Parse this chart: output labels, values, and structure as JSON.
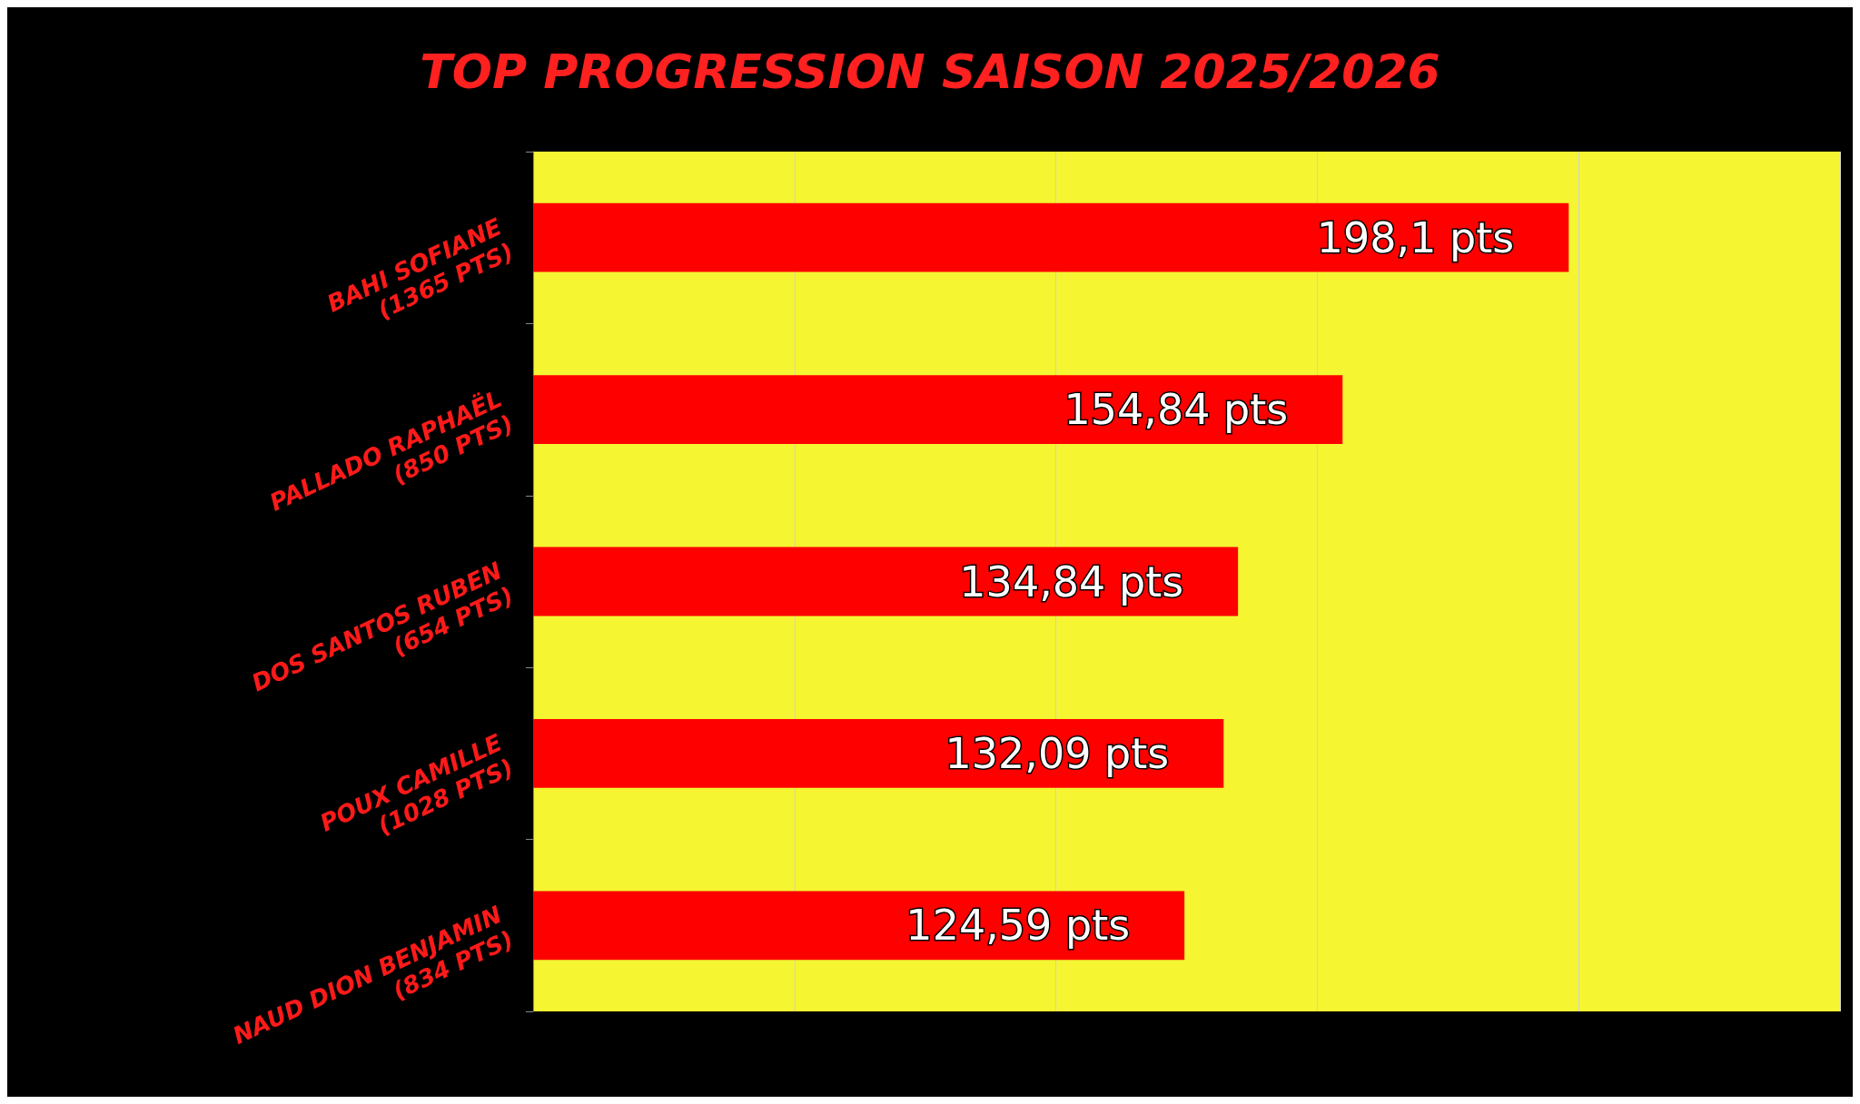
{
  "chart_data": {
    "type": "bar",
    "orientation": "horizontal",
    "title": "TOP PROGRESSION SAISON 2025/2026",
    "categories": [
      "BAHI SOFIANE\n(1365 PTS)",
      "PALLADO RAPHAËL\n(850 PTS)",
      "DOS SANTOS RUBEN\n(654 PTS)",
      "POUX CAMILLE\n(1028 PTS)",
      "NAUD DION BENJAMIN\n(834 PTS)"
    ],
    "values": [
      198.1,
      154.84,
      134.84,
      132.09,
      124.59
    ],
    "value_labels": [
      "198,1 pts",
      "154,84 pts",
      "134,84 pts",
      "132,09 pts",
      "124,59 pts"
    ],
    "color": "#ff0000",
    "xlim": [
      0,
      250
    ],
    "xticks": [
      {
        "value": 0,
        "label": null
      },
      {
        "value": 50,
        "label": null
      },
      {
        "value": 100,
        "label": null
      },
      {
        "value": 150,
        "label": null
      },
      {
        "value": 200,
        "label": null
      },
      {
        "value": 250,
        "label": null
      }
    ],
    "grid": "x",
    "tick_labels": "y"
  }
}
